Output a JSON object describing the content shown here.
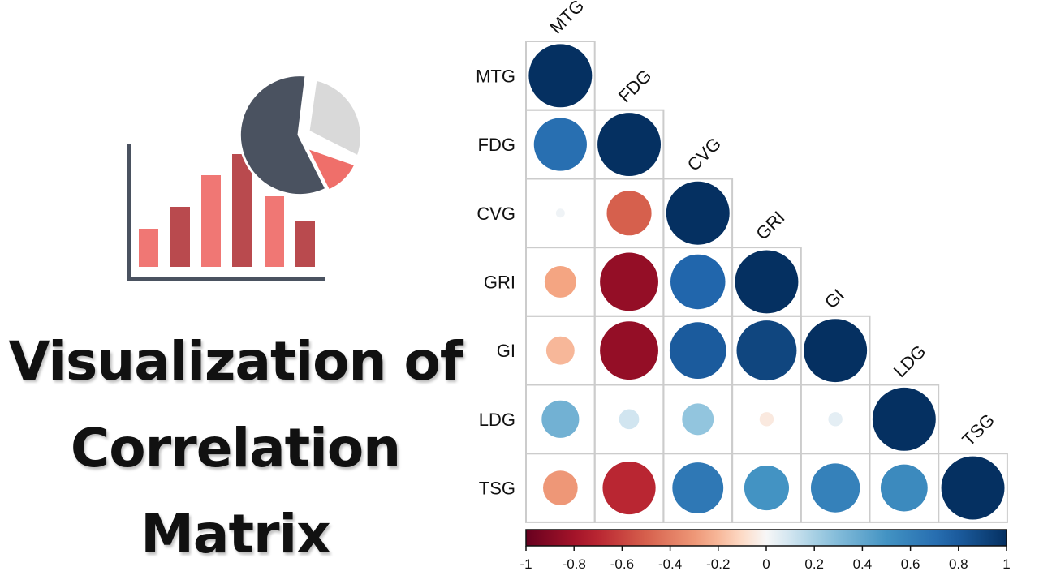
{
  "title": {
    "line1": "Visualization of",
    "line2": "Correlation",
    "line3": "Matrix"
  },
  "colors": {
    "pie_dark": "#4a5260",
    "pie_light": "#d9d9d9",
    "pie_red": "#ef6f6a",
    "bar_light": "#f07774",
    "bar_dark": "#b94a4e",
    "axis": "#4a5260",
    "grid": "#cccccc"
  },
  "chart_data": {
    "type": "heatmap",
    "style": "circle-lower-triangle",
    "variables": [
      "MTG",
      "FDG",
      "CVG",
      "GRI",
      "GI",
      "LDG",
      "TSG"
    ],
    "matrix": [
      [
        1.0,
        null,
        null,
        null,
        null,
        null,
        null
      ],
      [
        0.7,
        1.0,
        null,
        null,
        null,
        null,
        null
      ],
      [
        0.02,
        -0.5,
        1.0,
        null,
        null,
        null,
        null
      ],
      [
        -0.25,
        -0.85,
        0.75,
        1.0,
        null,
        null,
        null
      ],
      [
        -0.2,
        -0.85,
        0.8,
        0.9,
        1.0,
        null,
        null
      ],
      [
        0.35,
        0.1,
        0.25,
        -0.05,
        0.05,
        1.0,
        null
      ],
      [
        -0.3,
        -0.7,
        0.65,
        0.5,
        0.6,
        0.55,
        1.0
      ]
    ],
    "colorbar": {
      "range": [
        -1,
        1
      ],
      "ticks": [
        "-1",
        "-0.8",
        "-0.6",
        "-0.4",
        "-0.2",
        "0",
        "0.2",
        "0.4",
        "0.6",
        "0.8",
        "1"
      ]
    },
    "title": "",
    "grid": true
  }
}
